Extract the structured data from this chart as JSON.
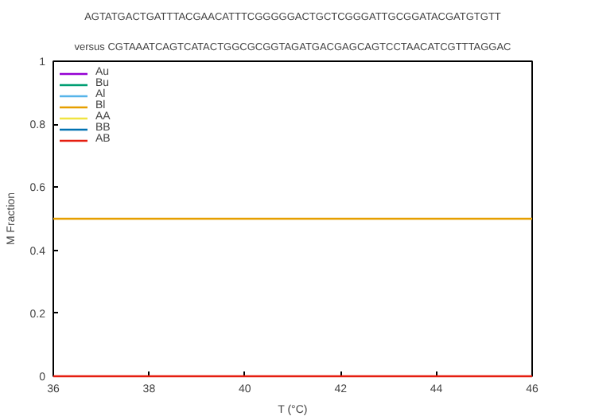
{
  "chart_data": {
    "type": "line",
    "title": "AGTATGACTGATTTACGAACATTTCGGGGGACTGCTCGGGATTGCGGATACGATGTGTT",
    "subtitle": "versus CGTAAATCAGTCATACTGGCGCGGTAGATGACGAGCAGTCCTAACATCGTTTAGGAC",
    "xlabel": "T (°C)",
    "ylabel": "M Fraction",
    "x": [
      36,
      46
    ],
    "series": [
      {
        "name": "Au",
        "color": "#9400d3",
        "values": [
          null,
          null
        ]
      },
      {
        "name": "Bu",
        "color": "#009e73",
        "values": [
          null,
          null
        ]
      },
      {
        "name": "Al",
        "color": "#56b4e9",
        "values": [
          null,
          null
        ]
      },
      {
        "name": "Bl",
        "color": "#e69f00",
        "values": [
          0.5,
          0.5
        ]
      },
      {
        "name": "AA",
        "color": "#f0e442",
        "values": [
          null,
          null
        ]
      },
      {
        "name": "BB",
        "color": "#0072b2",
        "values": [
          null,
          null
        ]
      },
      {
        "name": "AB",
        "color": "#e51e10",
        "values": [
          0,
          0
        ]
      }
    ],
    "xlim": [
      36,
      46
    ],
    "xticks": [
      36,
      38,
      40,
      42,
      44,
      46
    ],
    "ylim": [
      0,
      1
    ],
    "yticks": [
      0,
      0.2,
      0.4,
      0.6,
      0.8,
      1
    ],
    "grid": false,
    "legend": "top left",
    "marker": "none",
    "line_style": "solid"
  }
}
